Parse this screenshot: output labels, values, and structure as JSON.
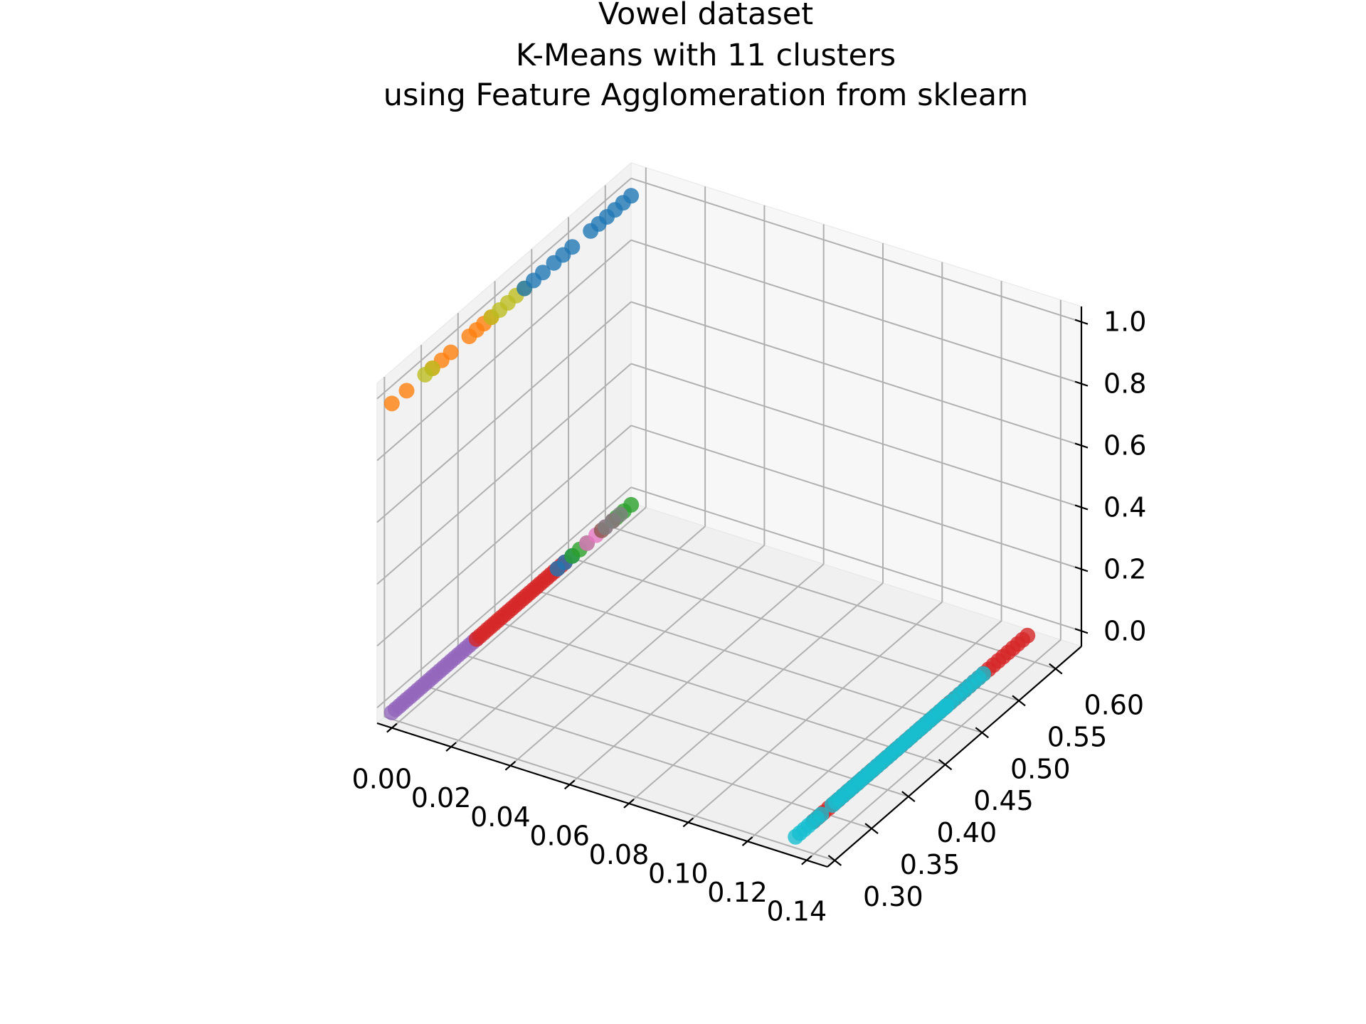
{
  "chart_data": {
    "type": "scatter",
    "projection": "3d",
    "title": [
      "Vowel dataset",
      "K-Means with 11 clusters",
      "using Feature Agglomeration from sklearn"
    ],
    "x_ticks": [
      "0.00",
      "0.02",
      "0.04",
      "0.06",
      "0.08",
      "0.10",
      "0.12",
      "0.14"
    ],
    "y_ticks": [
      "0.30",
      "0.35",
      "0.40",
      "0.45",
      "0.50",
      "0.55",
      "0.60"
    ],
    "z_ticks": [
      "0.0",
      "0.2",
      "0.4",
      "0.6",
      "0.8",
      "1.0"
    ],
    "xlim": [
      -0.005,
      0.147
    ],
    "ylim": [
      0.29,
      0.635
    ],
    "zlim": [
      -0.05,
      1.05
    ],
    "grid": true,
    "colors": {
      "c0": "#1f77b4",
      "c1": "#ff7f0e",
      "c2": "#2ca02c",
      "c3": "#d62728",
      "c4": "#9467bd",
      "c5": "#8c564b",
      "c6": "#e377c2",
      "c7": "#7f7f7f",
      "c8": "#bcbd22",
      "c9": "#17becf"
    },
    "series": [
      {
        "color": "c1",
        "segments": [
          [
            0.0,
            0.29,
            1.0,
            0.0,
            0.31,
            1.0,
            2
          ],
          [
            0.0,
            0.345,
            1.0,
            0.0,
            0.37,
            1.0,
            3
          ],
          [
            0.0,
            0.395,
            1.0,
            0.0,
            0.425,
            1.0,
            4
          ]
        ]
      },
      {
        "color": "c8",
        "segments": [
          [
            0.0,
            0.335,
            1.0,
            0.0,
            0.345,
            1.0,
            2
          ],
          [
            0.0,
            0.425,
            1.0,
            0.0,
            0.47,
            1.0,
            5
          ]
        ]
      },
      {
        "color": "c0",
        "segments": [
          [
            0.0,
            0.47,
            1.0,
            0.0,
            0.495,
            1.0,
            3
          ],
          [
            0.0,
            0.51,
            1.0,
            0.0,
            0.535,
            1.0,
            3
          ],
          [
            0.0,
            0.56,
            1.0,
            0.0,
            0.615,
            1.0,
            6
          ]
        ]
      },
      {
        "color": "c4",
        "segments": [
          [
            0.0,
            0.29,
            0.0,
            0.0,
            0.405,
            0.0,
            24
          ]
        ]
      },
      {
        "color": "c3",
        "segments": [
          [
            0.0,
            0.405,
            0.0,
            0.0,
            0.525,
            0.0,
            26
          ],
          [
            0.135,
            0.32,
            0.0,
            0.135,
            0.61,
            0.0,
            45
          ]
        ]
      },
      {
        "color": "c0",
        "segments": [
          [
            0.0,
            0.515,
            0.0,
            0.0,
            0.535,
            0.0,
            3
          ]
        ]
      },
      {
        "color": "c2",
        "segments": [
          [
            0.0,
            0.535,
            0.0,
            0.0,
            0.555,
            0.0,
            3
          ],
          [
            0.0,
            0.595,
            0.0,
            0.0,
            0.615,
            0.0,
            3
          ]
        ]
      },
      {
        "color": "c6",
        "segments": [
          [
            0.0,
            0.555,
            0.0,
            0.0,
            0.58,
            0.0,
            3
          ]
        ]
      },
      {
        "color": "c5",
        "segments": [
          [
            0.0,
            0.575,
            0.0,
            0.0,
            0.59,
            0.0,
            2
          ]
        ]
      },
      {
        "color": "c7",
        "segments": [
          [
            0.0,
            0.58,
            0.0,
            0.0,
            0.6,
            0.0,
            3
          ]
        ]
      },
      {
        "color": "c9",
        "segments": [
          [
            0.135,
            0.295,
            0.0,
            0.135,
            0.33,
            0.0,
            7
          ],
          [
            0.135,
            0.345,
            0.0,
            0.135,
            0.5,
            0.0,
            34
          ],
          [
            0.135,
            0.5,
            0.0,
            0.135,
            0.55,
            0.0,
            9
          ]
        ]
      }
    ]
  }
}
